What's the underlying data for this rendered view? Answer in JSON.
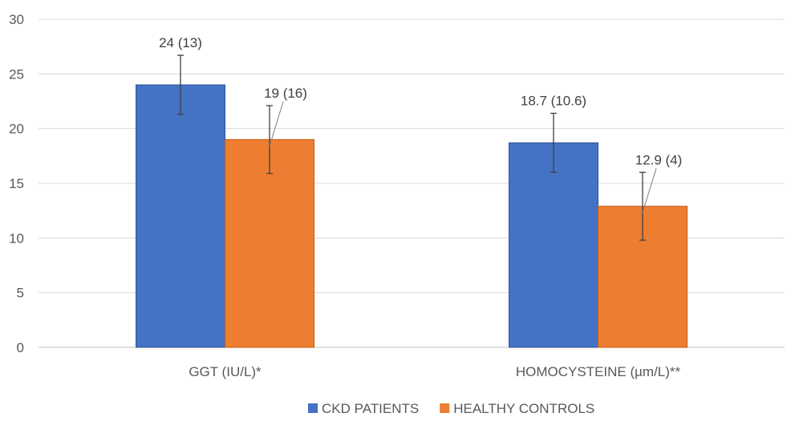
{
  "chart_data": {
    "type": "bar",
    "title": "",
    "xlabel": "",
    "ylabel": "",
    "categories": [
      "GGT (IU/L)*",
      "HOMOCYSTEINE (µm/L)**"
    ],
    "ylim": [
      0,
      30
    ],
    "yticks": [
      0,
      5,
      10,
      15,
      20,
      25,
      30
    ],
    "grid": true,
    "legend_position": "bottom",
    "series": [
      {
        "name": "CKD PATIENTS",
        "color": "#4472c4",
        "values": [
          24,
          18.7
        ],
        "error_low": [
          21.3,
          16.0
        ],
        "error_high": [
          26.7,
          21.4
        ],
        "labels": [
          "24 (13)",
          "18.7 (10.6)"
        ]
      },
      {
        "name": "HEALTHY CONTROLS",
        "color": "#ed7d31",
        "values": [
          19,
          12.9
        ],
        "error_low": [
          15.9,
          9.8
        ],
        "error_high": [
          22.1,
          16.0
        ],
        "labels": [
          "19 (16)",
          "12.9 (4)"
        ]
      }
    ]
  }
}
